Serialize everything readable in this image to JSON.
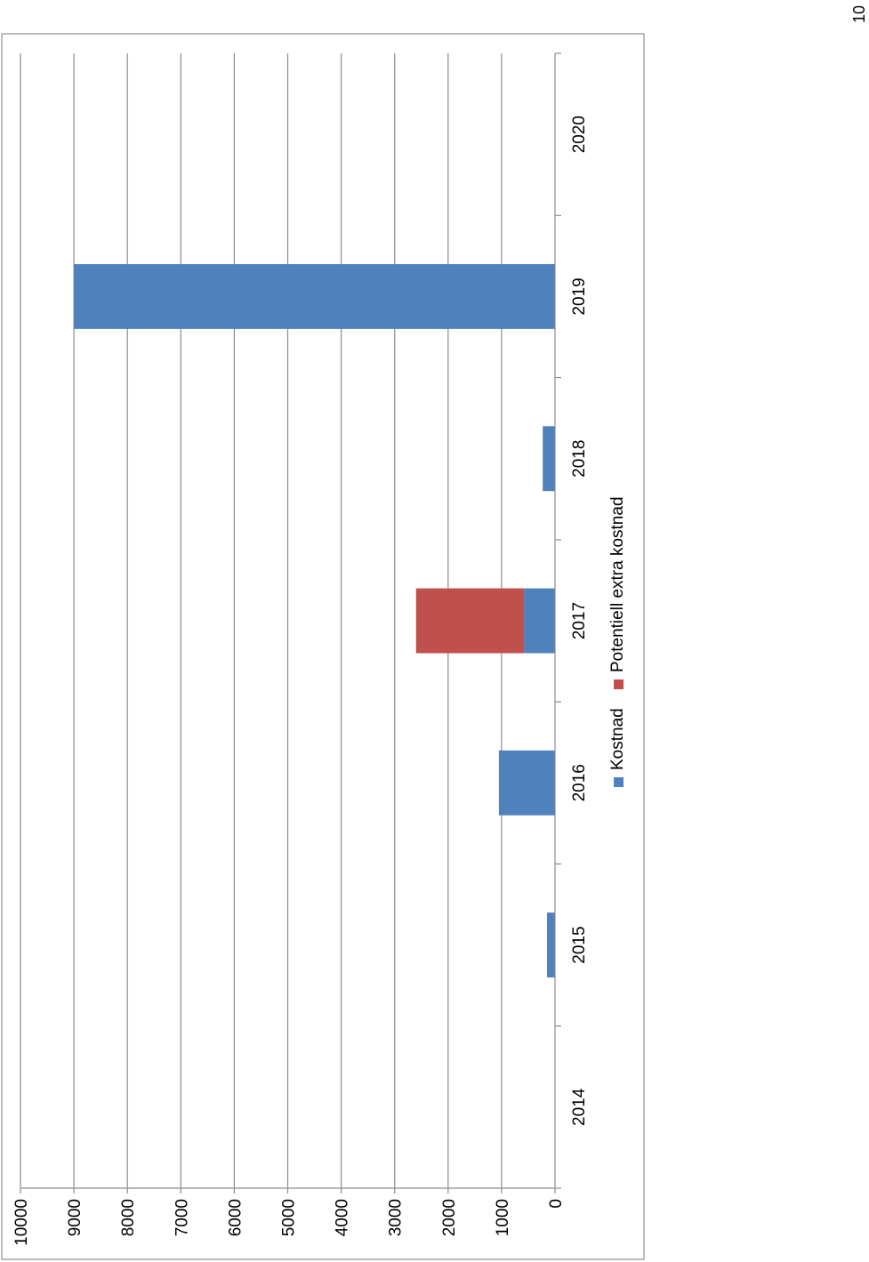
{
  "page_number": "10",
  "colors": {
    "kostnad": "#4f81bd",
    "potentiell": "#c0504d",
    "grid": "#8c8c8c",
    "axis": "#8c8c8c",
    "frame": "#a6a6a6"
  },
  "chart_data": {
    "type": "bar",
    "orientation": "rotated-90",
    "stacked": true,
    "categories": [
      "2014",
      "2015",
      "2016",
      "2017",
      "2018",
      "2019",
      "2020"
    ],
    "series": [
      {
        "name": "Kostnad",
        "color": "#4f81bd",
        "values": [
          0,
          150,
          1050,
          580,
          230,
          9000,
          0
        ]
      },
      {
        "name": "Potentiell extra kostnad",
        "color": "#c0504d",
        "values": [
          0,
          0,
          0,
          2020,
          0,
          0,
          0
        ]
      }
    ],
    "y_ticks": [
      "0",
      "1000",
      "2000",
      "3000",
      "4000",
      "5000",
      "6000",
      "7000",
      "8000",
      "9000",
      "10000"
    ],
    "ylim": [
      0,
      10000
    ],
    "grid": true,
    "legend_position": "bottom"
  }
}
